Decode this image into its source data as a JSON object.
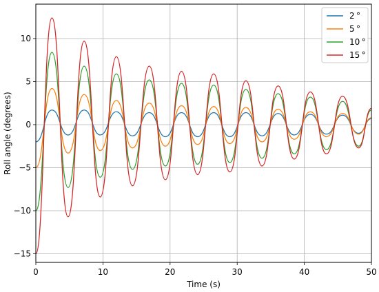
{
  "chart_data": {
    "type": "line",
    "xlabel": "Time (s)",
    "ylabel": "Roll angle (degrees)",
    "xlim": [
      0,
      50
    ],
    "ylim": [
      -16,
      14
    ],
    "xticks": [
      0,
      10,
      20,
      30,
      40,
      50
    ],
    "yticks": [
      -15,
      -10,
      -5,
      0,
      5,
      10
    ],
    "grid": true,
    "legend_position": "top-right",
    "series": [
      {
        "name": "2$^\\circ$",
        "label_text": "2 °",
        "color": "#1f77b4",
        "x": [
          0,
          2.4,
          4.8,
          7.2,
          9.6,
          12.0,
          14.4,
          16.9,
          19.3,
          21.7,
          24.1,
          26.5,
          28.9,
          31.3,
          33.7,
          36.1,
          38.5,
          40.9,
          43.3,
          45.7,
          48.1,
          50
        ],
        "y": [
          -2.0,
          1.7,
          -1.2,
          1.7,
          -1.2,
          1.5,
          -1.3,
          1.4,
          -1.4,
          1.4,
          -1.4,
          1.4,
          -1.4,
          1.4,
          -1.3,
          1.3,
          -1.2,
          1.2,
          -1.1,
          1.1,
          -1.0,
          0.7
        ]
      },
      {
        "name": "5$^\\circ$",
        "label_text": "5 °",
        "color": "#ff7f0e",
        "x": [
          0,
          2.4,
          4.8,
          7.2,
          9.6,
          12.0,
          14.4,
          16.9,
          19.3,
          21.7,
          24.1,
          26.5,
          28.9,
          31.3,
          33.7,
          36.1,
          38.5,
          40.9,
          43.3,
          45.7,
          48.1,
          50
        ],
        "y": [
          -5.0,
          4.2,
          -3.3,
          3.5,
          -3.0,
          2.8,
          -2.7,
          2.5,
          -2.5,
          2.2,
          -2.3,
          2.1,
          -2.2,
          2.0,
          -2.0,
          1.8,
          -1.7,
          1.5,
          -1.4,
          1.3,
          -1.1,
          0.8
        ]
      },
      {
        "name": "10$^\\circ$",
        "label_text": "10 °",
        "color": "#2ca02c",
        "x": [
          0,
          2.4,
          4.8,
          7.2,
          9.6,
          12.0,
          14.4,
          16.9,
          19.3,
          21.7,
          24.1,
          26.5,
          28.9,
          31.3,
          33.7,
          36.1,
          38.5,
          40.9,
          43.3,
          45.7,
          48.1,
          50
        ],
        "y": [
          -10.0,
          8.4,
          -7.3,
          6.8,
          -6.1,
          5.9,
          -5.2,
          5.2,
          -4.8,
          4.8,
          -4.6,
          4.6,
          -4.4,
          4.1,
          -3.9,
          3.6,
          -3.4,
          3.2,
          -2.9,
          2.7,
          -2.5,
          1.7
        ]
      },
      {
        "name": "15$^\\circ$",
        "label_text": "15 °",
        "color": "#d62728",
        "x": [
          0,
          2.4,
          4.8,
          7.2,
          9.6,
          12.0,
          14.4,
          16.9,
          19.3,
          21.7,
          24.1,
          26.5,
          28.9,
          31.3,
          33.7,
          36.1,
          38.5,
          40.9,
          43.3,
          45.7,
          48.1,
          50
        ],
        "y": [
          -15.0,
          12.4,
          -10.7,
          9.7,
          -8.4,
          7.9,
          -7.1,
          6.8,
          -6.4,
          6.2,
          -5.8,
          5.9,
          -5.5,
          5.1,
          -4.8,
          4.5,
          -4.0,
          3.8,
          -3.4,
          3.3,
          -2.7,
          1.9
        ]
      }
    ]
  }
}
